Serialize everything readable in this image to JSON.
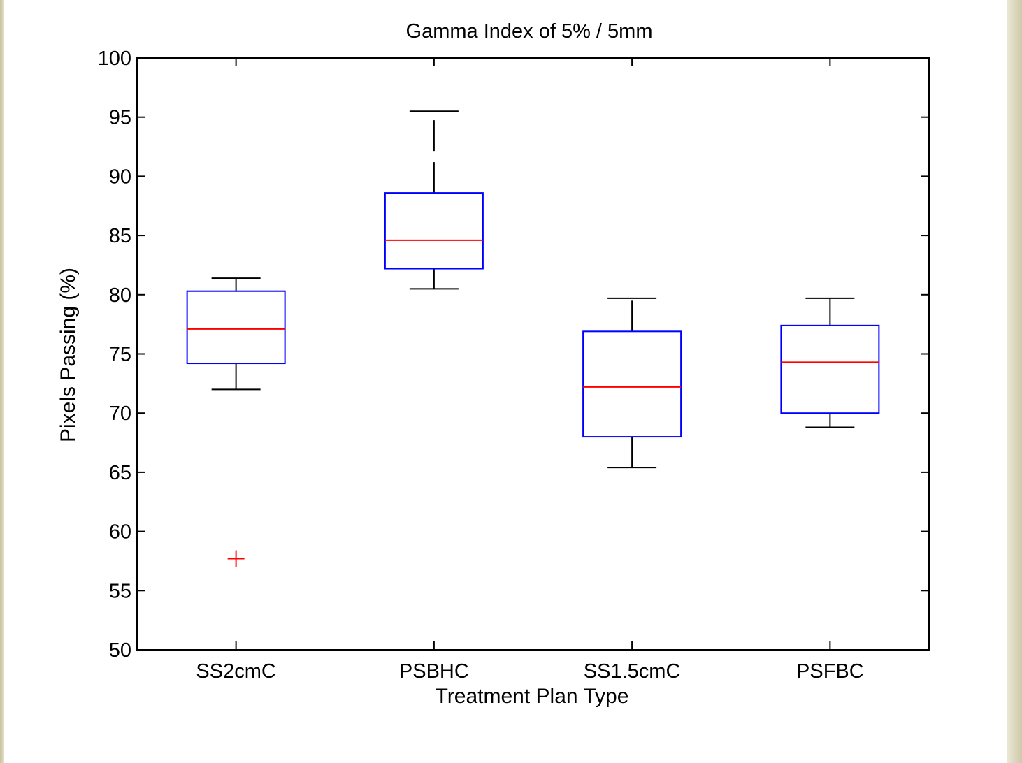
{
  "chart_data": {
    "type": "box",
    "title": "Gamma Index of 5% / 5mm",
    "xlabel": "Treatment Plan Type",
    "ylabel": "Pixels Passing (%)",
    "ylim": [
      50,
      100
    ],
    "yticks": [
      "50",
      "55",
      "60",
      "65",
      "70",
      "75",
      "80",
      "85",
      "90",
      "95",
      "100"
    ],
    "categories": [
      "SS2cmC",
      "PSBHC",
      "SS1.5cmC",
      "PSFBC"
    ],
    "boxes": [
      {
        "category": "SS2cmC",
        "whisker_low": 72.0,
        "q1": 74.2,
        "median": 77.1,
        "q3": 80.3,
        "whisker_high": 81.4,
        "outliers": [
          57.7
        ]
      },
      {
        "category": "PSBHC",
        "whisker_low": 80.5,
        "q1": 82.2,
        "median": 84.6,
        "q3": 88.6,
        "whisker_high": 95.5,
        "outliers": []
      },
      {
        "category": "SS1.5cmC",
        "whisker_low": 65.4,
        "q1": 68.0,
        "median": 72.2,
        "q3": 76.9,
        "whisker_high": 79.7,
        "outliers": []
      },
      {
        "category": "PSFBC",
        "whisker_low": 68.8,
        "q1": 70.0,
        "median": 74.3,
        "q3": 77.4,
        "whisker_high": 79.7,
        "outliers": []
      }
    ],
    "grid": false,
    "colors": {
      "box": "#0000ff",
      "median": "#ff0000",
      "whisker": "#000000",
      "outlier": "#ff0000"
    }
  }
}
